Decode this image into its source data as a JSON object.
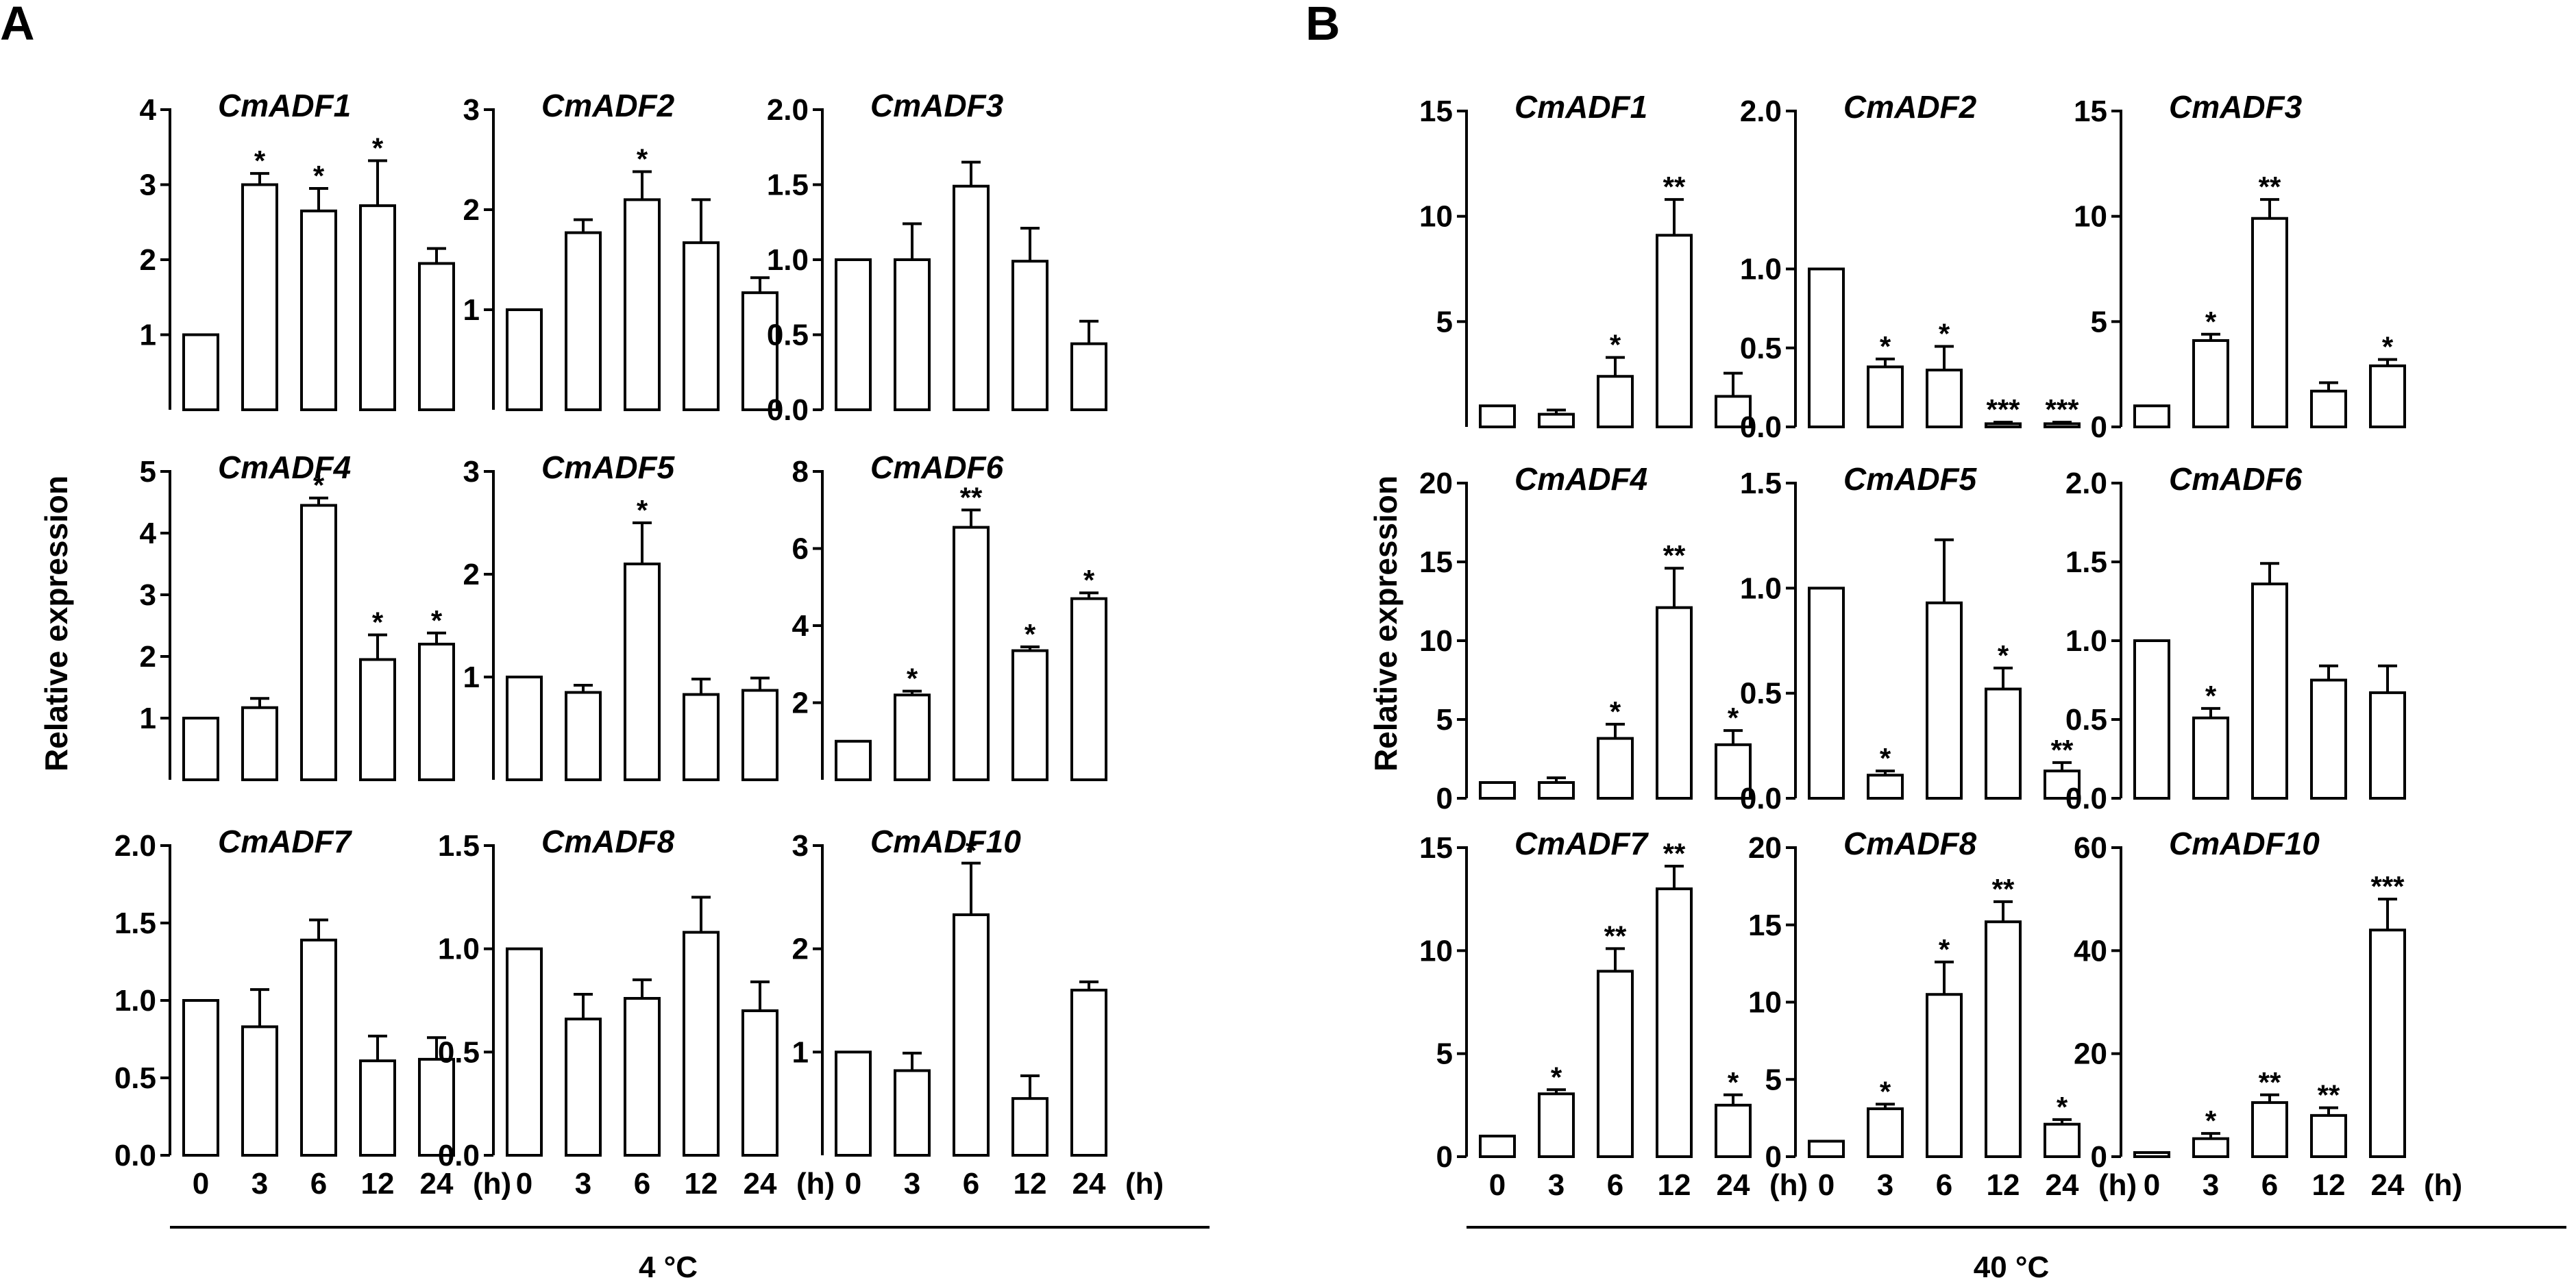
{
  "figure": {
    "panels": [
      {
        "letter": "A",
        "condition": "4 °C",
        "ylabel": "Relative expression"
      },
      {
        "letter": "B",
        "condition": "40 °C",
        "ylabel": "Relative expression"
      }
    ],
    "x_categories": [
      "0",
      "3",
      "6",
      "12",
      "24"
    ],
    "x_unit": "(h)"
  },
  "chart_data": [
    {
      "type": "bar",
      "panel": "A",
      "title": "CmADF1",
      "categories": [
        "0",
        "3",
        "6",
        "12",
        "24"
      ],
      "values": [
        1.0,
        3.0,
        2.65,
        2.72,
        1.95
      ],
      "errors": [
        0,
        0.15,
        0.3,
        0.6,
        0.2
      ],
      "significance": [
        "",
        "*",
        "*",
        "*",
        ""
      ],
      "ylim": [
        0,
        4
      ],
      "yticks": [
        "1",
        "2",
        "3",
        "4"
      ]
    },
    {
      "type": "bar",
      "panel": "A",
      "title": "CmADF2",
      "categories": [
        "0",
        "3",
        "6",
        "12",
        "24"
      ],
      "values": [
        1.0,
        1.77,
        2.1,
        1.67,
        1.17
      ],
      "errors": [
        0,
        0.13,
        0.28,
        0.43,
        0.15
      ],
      "significance": [
        "",
        "",
        "*",
        "",
        ""
      ],
      "ylim": [
        0,
        3
      ],
      "yticks": [
        "1",
        "2",
        "3"
      ]
    },
    {
      "type": "bar",
      "panel": "A",
      "title": "CmADF3",
      "categories": [
        "0",
        "3",
        "6",
        "12",
        "24"
      ],
      "values": [
        1.0,
        1.0,
        1.49,
        0.99,
        0.44
      ],
      "errors": [
        0,
        0.24,
        0.16,
        0.22,
        0.15
      ],
      "significance": [
        "",
        "",
        "",
        "",
        ""
      ],
      "ylim": [
        0,
        2.0
      ],
      "yticks": [
        "0.0",
        "0.5",
        "1.0",
        "1.5",
        "2.0"
      ]
    },
    {
      "type": "bar",
      "panel": "A",
      "title": "CmADF4",
      "categories": [
        "0",
        "3",
        "6",
        "12",
        "24"
      ],
      "values": [
        1.0,
        1.17,
        4.45,
        1.95,
        2.2
      ],
      "errors": [
        0,
        0.15,
        0.12,
        0.4,
        0.18
      ],
      "significance": [
        "",
        "",
        "*",
        "*",
        "*"
      ],
      "ylim": [
        0,
        5
      ],
      "yticks": [
        "1",
        "2",
        "3",
        "4",
        "5"
      ]
    },
    {
      "type": "bar",
      "panel": "A",
      "title": "CmADF5",
      "categories": [
        "0",
        "3",
        "6",
        "12",
        "24"
      ],
      "values": [
        1.0,
        0.85,
        2.1,
        0.83,
        0.87
      ],
      "errors": [
        0,
        0.07,
        0.4,
        0.15,
        0.12
      ],
      "significance": [
        "",
        "",
        "*",
        "",
        ""
      ],
      "ylim": [
        0,
        3
      ],
      "yticks": [
        "1",
        "2",
        "3"
      ]
    },
    {
      "type": "bar",
      "panel": "A",
      "title": "CmADF6",
      "categories": [
        "0",
        "3",
        "6",
        "12",
        "24"
      ],
      "values": [
        1.0,
        2.2,
        6.55,
        3.35,
        4.7
      ],
      "errors": [
        0,
        0.1,
        0.45,
        0.1,
        0.15
      ],
      "significance": [
        "",
        "*",
        "**",
        "*",
        "*"
      ],
      "ylim": [
        0,
        8
      ],
      "yticks": [
        "2",
        "4",
        "6",
        "8"
      ]
    },
    {
      "type": "bar",
      "panel": "A",
      "title": "CmADF7",
      "categories": [
        "0",
        "3",
        "6",
        "12",
        "24"
      ],
      "values": [
        1.0,
        0.83,
        1.39,
        0.61,
        0.62
      ],
      "errors": [
        0,
        0.24,
        0.13,
        0.16,
        0.14
      ],
      "significance": [
        "",
        "",
        "",
        "",
        ""
      ],
      "ylim": [
        0,
        2.0
      ],
      "yticks": [
        "0.0",
        "0.5",
        "1.0",
        "1.5",
        "2.0"
      ]
    },
    {
      "type": "bar",
      "panel": "A",
      "title": "CmADF8",
      "categories": [
        "0",
        "3",
        "6",
        "12",
        "24"
      ],
      "values": [
        1.0,
        0.66,
        0.76,
        1.08,
        0.7
      ],
      "errors": [
        0,
        0.12,
        0.09,
        0.17,
        0.14
      ],
      "significance": [
        "",
        "",
        "",
        "",
        ""
      ],
      "ylim": [
        0,
        1.5
      ],
      "yticks": [
        "0.0",
        "0.5",
        "1.0",
        "1.5"
      ]
    },
    {
      "type": "bar",
      "panel": "A",
      "title": "CmADF10",
      "categories": [
        "0",
        "3",
        "6",
        "12",
        "24"
      ],
      "values": [
        1.0,
        0.82,
        2.33,
        0.55,
        1.6
      ],
      "errors": [
        0,
        0.17,
        0.5,
        0.22,
        0.08
      ],
      "significance": [
        "",
        "",
        "*",
        "",
        ""
      ],
      "ylim": [
        0,
        3
      ],
      "yticks": [
        "1",
        "2",
        "3"
      ]
    },
    {
      "type": "bar",
      "panel": "B",
      "title": "CmADF1",
      "categories": [
        "0",
        "3",
        "6",
        "12",
        "24"
      ],
      "values": [
        1.0,
        0.6,
        2.4,
        9.1,
        1.45
      ],
      "errors": [
        0,
        0.2,
        0.9,
        1.7,
        1.1
      ],
      "significance": [
        "",
        "",
        "*",
        "**",
        ""
      ],
      "ylim": [
        0,
        15
      ],
      "yticks": [
        "5",
        "10",
        "15"
      ]
    },
    {
      "type": "bar",
      "panel": "B",
      "title": "CmADF2",
      "categories": [
        "0",
        "3",
        "6",
        "12",
        "24"
      ],
      "values": [
        1.0,
        0.38,
        0.36,
        0.02,
        0.02
      ],
      "errors": [
        0,
        0.05,
        0.15,
        0.01,
        0.01
      ],
      "significance": [
        "",
        "*",
        "*",
        "***",
        "***"
      ],
      "ylim": [
        0,
        2.0
      ],
      "yticks": [
        "0.0",
        "0.5",
        "1.0",
        "2.0"
      ]
    },
    {
      "type": "bar",
      "panel": "B",
      "title": "CmADF3",
      "categories": [
        "0",
        "3",
        "6",
        "12",
        "24"
      ],
      "values": [
        1.0,
        4.1,
        9.9,
        1.7,
        2.9
      ],
      "errors": [
        0,
        0.3,
        0.9,
        0.4,
        0.3
      ],
      "significance": [
        "",
        "*",
        "**",
        "",
        "*"
      ],
      "ylim": [
        0,
        15
      ],
      "yticks": [
        "0",
        "5",
        "10",
        "15"
      ]
    },
    {
      "type": "bar",
      "panel": "B",
      "title": "CmADF4",
      "categories": [
        "0",
        "3",
        "6",
        "12",
        "24"
      ],
      "values": [
        1.0,
        1.0,
        3.8,
        12.1,
        3.4
      ],
      "errors": [
        0,
        0.3,
        0.9,
        2.5,
        0.9
      ],
      "significance": [
        "",
        "",
        "*",
        "**",
        "*"
      ],
      "ylim": [
        0,
        20
      ],
      "yticks": [
        "0",
        "5",
        "10",
        "15",
        "20"
      ]
    },
    {
      "type": "bar",
      "panel": "B",
      "title": "CmADF5",
      "categories": [
        "0",
        "3",
        "6",
        "12",
        "24"
      ],
      "values": [
        1.0,
        0.11,
        0.93,
        0.52,
        0.13
      ],
      "errors": [
        0,
        0.02,
        0.3,
        0.1,
        0.04
      ],
      "significance": [
        "",
        "*",
        "",
        "*",
        "**"
      ],
      "ylim": [
        0,
        1.5
      ],
      "yticks": [
        "0.0",
        "0.5",
        "1.0",
        "1.5"
      ]
    },
    {
      "type": "bar",
      "panel": "B",
      "title": "CmADF6",
      "categories": [
        "0",
        "3",
        "6",
        "12",
        "24"
      ],
      "values": [
        1.0,
        0.51,
        1.36,
        0.75,
        0.67
      ],
      "errors": [
        0,
        0.06,
        0.13,
        0.09,
        0.17
      ],
      "significance": [
        "",
        "*",
        "",
        "",
        ""
      ],
      "ylim": [
        0,
        2.0
      ],
      "yticks": [
        "0.0",
        "0.5",
        "1.0",
        "1.5",
        "2.0"
      ]
    },
    {
      "type": "bar",
      "panel": "B",
      "title": "CmADF7",
      "categories": [
        "0",
        "3",
        "6",
        "12",
        "24"
      ],
      "values": [
        1.0,
        3.05,
        9.0,
        13.0,
        2.5
      ],
      "errors": [
        0,
        0.2,
        1.1,
        1.1,
        0.5
      ],
      "significance": [
        "",
        "*",
        "**",
        "**",
        "*"
      ],
      "ylim": [
        0,
        15
      ],
      "yticks": [
        "0",
        "5",
        "10",
        "15"
      ]
    },
    {
      "type": "bar",
      "panel": "B",
      "title": "CmADF8",
      "categories": [
        "0",
        "3",
        "6",
        "12",
        "24"
      ],
      "values": [
        1.0,
        3.1,
        10.5,
        15.2,
        2.1
      ],
      "errors": [
        0,
        0.3,
        2.1,
        1.3,
        0.3
      ],
      "significance": [
        "",
        "*",
        "*",
        "**",
        "*"
      ],
      "ylim": [
        0,
        20
      ],
      "yticks": [
        "0",
        "5",
        "10",
        "15",
        "20"
      ]
    },
    {
      "type": "bar",
      "panel": "B",
      "title": "CmADF10",
      "categories": [
        "0",
        "3",
        "6",
        "12",
        "24"
      ],
      "values": [
        0.8,
        3.5,
        10.5,
        8.0,
        44.0
      ],
      "errors": [
        0,
        1.0,
        1.5,
        1.5,
        6.0
      ],
      "significance": [
        "",
        "*",
        "**",
        "**",
        "***"
      ],
      "ylim": [
        0,
        60
      ],
      "yticks": [
        "0",
        "20",
        "40",
        "60"
      ]
    }
  ]
}
